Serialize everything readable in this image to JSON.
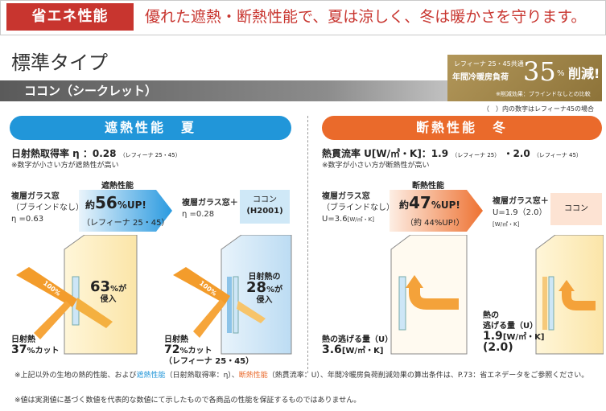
{
  "header": {
    "tag": "省エネ性能",
    "tagline": "優れた遮熱・断熱性能で、夏は涼しく、冬は暖かさを守ります。"
  },
  "title": "標準タイプ",
  "subbar": "ココン（シークレット）",
  "badge": {
    "line1": "レフィーナ 25・45共通",
    "line2": "年間冷暖房負荷",
    "number": "35",
    "percent": "%",
    "reduce": "削減!",
    "note": "※削減効果：ブラインドなしとの比較"
  },
  "paren_note": "（　）内の数字はレフィーナ45の場合",
  "summer": {
    "pill": "遮熱性能　夏",
    "metric": "日射熱取得率 η ：0.28",
    "metric_small": "（レフィーナ 25・45）",
    "note": "※数字が小さい方が遮熱性が高い",
    "left_label1": "複層ガラス窓",
    "left_label2": "（ブラインドなし）",
    "left_label3": "η =0.63",
    "arrow_title": "遮熱性能",
    "arrow_pre": "約",
    "arrow_value": "56",
    "arrow_unit": "%UP!",
    "arrow_sub": "（レフィーナ 25・45）",
    "right_label1": "複層ガラス窓＋",
    "right_label2": "η =0.28",
    "box_line1": "ココン",
    "box_line2": "(H2001)",
    "house1": {
      "pct_value": "63",
      "pct_unit": "%が",
      "pct_word": "侵入",
      "ray": "100%",
      "cut_label": "日射熱",
      "cut_value": "37",
      "cut_unit": "%カット"
    },
    "house2": {
      "intro": "日射熱の",
      "pct_value": "28",
      "pct_unit": "%が",
      "pct_word": "侵入",
      "ray": "100%",
      "cut_label": "日射熱",
      "cut_value": "72",
      "cut_unit": "%カット",
      "cut_sub": "（レフィーナ 25・45）"
    }
  },
  "winter": {
    "pill": "断熱性能　冬",
    "metric": "熱貫流率 U[W/㎡・K]：1.9",
    "metric_small1": "（レフィーナ 25）",
    "metric_mid": "・2.0",
    "metric_small2": "（レフィーナ 45）",
    "note": "※数字が小さい方が断熱性が高い",
    "left_label1": "複層ガラス窓",
    "left_label2": "（ブラインドなし）",
    "left_label3": "U=3.6",
    "left_label3_unit": "[W/㎡・K]",
    "arrow_title": "断熱性能",
    "arrow_pre": "約",
    "arrow_value": "47",
    "arrow_unit": "%UP!",
    "arrow_sub": "（約 44%UP!）",
    "right_label1": "複層ガラス窓＋",
    "right_label2": "U=1.9（2.0）",
    "right_label3": "[W/㎡・K]",
    "box_line1": "ココン",
    "house1": {
      "label": "熱の逃げる量（U）",
      "value": "3.6",
      "unit": "[W/㎡・K]"
    },
    "house2": {
      "label1": "熱の",
      "label2": "逃げる量（U）",
      "value": "1.9",
      "unit": "[W/㎡・K]",
      "value2": "(2.0)"
    }
  },
  "footnote1_a": "※上記以外の生地の熱的性能、および",
  "footnote1_b": "遮熱性能",
  "footnote1_c": "（日射熱取得率：η）、",
  "footnote1_d": "断熱性能",
  "footnote1_e": "（熱貫流率：U）、年間冷暖房負荷削減効果の算出条件は、P.73：省エネデータをご参照ください。",
  "footnote2": "※値は実測値に基づく数値を代表的な数値にて示したもので各商品の性能を保証するものではありません。",
  "colors": {
    "red": "#c8352f",
    "blue": "#2196d9",
    "orange": "#ea6a2b",
    "gold": "#a88d50"
  }
}
